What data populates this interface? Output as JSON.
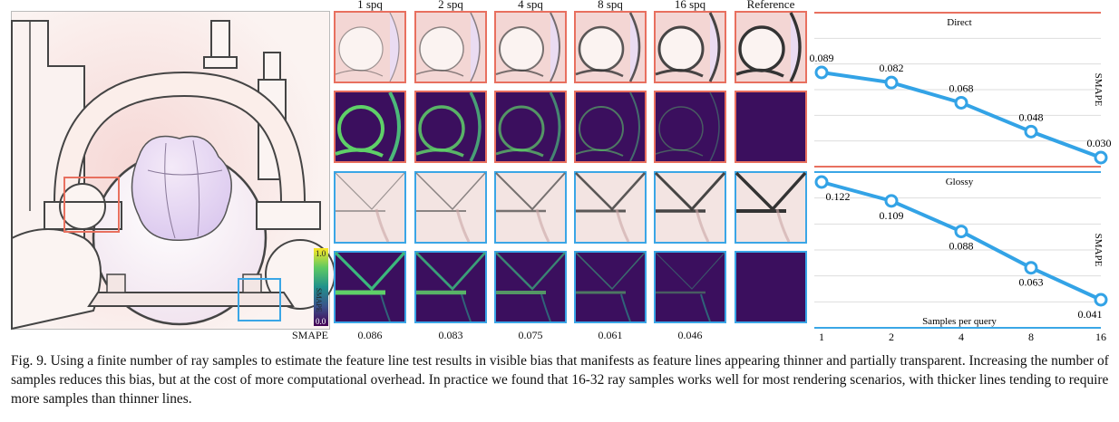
{
  "columns": [
    "1 spq",
    "2 spq",
    "4 spq",
    "8 spq",
    "16 spq",
    "Reference"
  ],
  "colorbar": {
    "max": "1.0",
    "label": "SMAPE",
    "min": "0.0"
  },
  "row_label": "SMAPE",
  "errors": [
    "0.086",
    "0.083",
    "0.075",
    "0.061",
    "0.046"
  ],
  "chart_data": [
    {
      "type": "line",
      "title": "Direct",
      "ylabel": "SMAPE",
      "x": [
        1,
        2,
        4,
        8,
        16
      ],
      "y": [
        0.089,
        0.082,
        0.068,
        0.048,
        0.03
      ],
      "labels": [
        "0.089",
        "0.082",
        "0.068",
        "0.048",
        "0.030"
      ],
      "color": "#33a3e6",
      "xscale": "log2"
    },
    {
      "type": "line",
      "title": "Glossy",
      "ylabel": "SMAPE",
      "xlabel": "Samples per query",
      "x": [
        1,
        2,
        4,
        8,
        16
      ],
      "y": [
        0.122,
        0.109,
        0.088,
        0.063,
        0.041
      ],
      "labels": [
        "0.122",
        "0.109",
        "0.088",
        "0.063",
        "0.041"
      ],
      "ticks": [
        "1",
        "2",
        "4",
        "8",
        "16"
      ],
      "color": "#33a3e6",
      "xscale": "log2"
    }
  ],
  "caption": "Fig. 9.  Using a finite number of ray samples to estimate the feature line test results in visible bias that manifests as feature lines appearing thinner and partially transparent. Increasing the number of samples reduces this bias, but at the cost of more computational overhead. In practice we found that 16-32 ray samples works well for most rendering scenarios, with thicker lines tending to require more samples than thinner lines.",
  "colors": {
    "red_box": "#e8705f",
    "blue_box": "#3aa6e6",
    "line": "#33a3e6",
    "error_green": "#5fd068",
    "viridis_bg": "#3b0f5e"
  }
}
